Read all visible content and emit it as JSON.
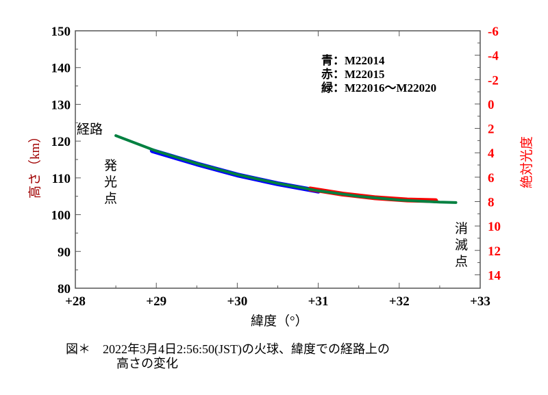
{
  "chart_data": {
    "type": "scatter",
    "xlabel": "緯度（°）",
    "ylabel": "高さ（km）",
    "y2label": "絶対光度",
    "xlim": [
      28,
      33
    ],
    "ylim": [
      80,
      150
    ],
    "y2lim": [
      -6,
      15.1
    ],
    "y2_reversed": true,
    "xticks": [
      "+28",
      "+29",
      "+30",
      "+31",
      "+32",
      "+33"
    ],
    "yticks": [
      "80",
      "90",
      "100",
      "110",
      "120",
      "130",
      "140",
      "150"
    ],
    "y2ticks": [
      "-6",
      "-4",
      "-2",
      "0",
      "2",
      "4",
      "6",
      "8",
      "10",
      "12",
      "14"
    ],
    "legend": [
      "青：M22014",
      "赤：M22015",
      "緑：M22016〜M22020"
    ],
    "annotations": {
      "path": "経路",
      "start": "発光点",
      "end": "消滅点"
    },
    "series": [
      {
        "name": "M22014",
        "color": "#0000ff",
        "x": [
          28.95,
          29.5,
          30.0,
          30.5,
          31.0
        ],
        "y": [
          117.4,
          113.8,
          110.8,
          108.4,
          106.4
        ]
      },
      {
        "name": "M22015",
        "color": "#ff0000",
        "x": [
          30.9,
          31.3,
          31.7,
          32.1,
          32.45
        ],
        "y": [
          107.0,
          105.6,
          104.6,
          104.0,
          103.8
        ]
      },
      {
        "name": "M22016〜M22020",
        "color": "#008040",
        "x": [
          28.5,
          29.0,
          29.5,
          30.0,
          30.5,
          31.0,
          31.5,
          32.0,
          32.5,
          32.7
        ],
        "y": [
          121.5,
          117.3,
          113.9,
          110.9,
          108.5,
          106.5,
          105.0,
          104.0,
          103.4,
          103.3
        ]
      }
    ]
  },
  "caption": {
    "line1": "図＊　2022年3月4日2:56:50(JST)の火球、緯度での経路上の",
    "line2": "高さの変化"
  }
}
